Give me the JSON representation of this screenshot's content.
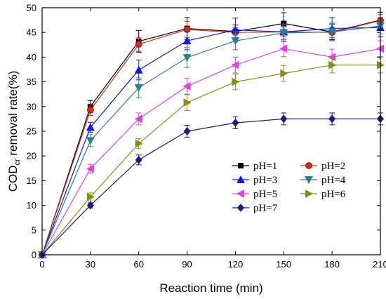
{
  "chart_data": {
    "type": "line",
    "title": "",
    "xlabel": "Reaction time (min)",
    "ylabel_main": "COD",
    "ylabel_sub": "cr",
    "ylabel_rest": " removal rate(%)",
    "xlim": [
      0,
      210
    ],
    "ylim": [
      0,
      50
    ],
    "xticks": [
      0,
      30,
      60,
      90,
      120,
      150,
      180,
      210
    ],
    "yticks": [
      0,
      5,
      10,
      15,
      20,
      25,
      30,
      35,
      40,
      45,
      50
    ],
    "grid": false,
    "legend_position": "bottom-right",
    "x": [
      0,
      30,
      60,
      90,
      120,
      150,
      180,
      210
    ],
    "series": [
      {
        "name": "pH=1",
        "color": "#000000",
        "marker": "square",
        "values": [
          0,
          30.0,
          43.2,
          45.8,
          45.2,
          46.8,
          45.1,
          47.5
        ],
        "errors": [
          0,
          1.2,
          2.2,
          2.2,
          1.3,
          2.2,
          1.6,
          1.6
        ]
      },
      {
        "name": "pH=2",
        "color": "#d42a1c",
        "marker": "circle",
        "values": [
          0,
          29.3,
          42.6,
          45.6,
          45.0,
          45.1,
          45.0,
          47.4
        ],
        "errors": [
          0,
          1.1,
          1.4,
          1.6,
          1.0,
          1.0,
          1.0,
          1.2
        ]
      },
      {
        "name": "pH=3",
        "color": "#1515e0",
        "marker": "triangle-up",
        "values": [
          0,
          25.8,
          37.4,
          43.3,
          45.5,
          45.1,
          45.8,
          46.0
        ],
        "errors": [
          0,
          1.0,
          2.0,
          1.8,
          2.4,
          1.5,
          2.2,
          1.9
        ]
      },
      {
        "name": "pH=4",
        "color": "#2a7f96",
        "marker": "triangle-down",
        "values": [
          0,
          23.1,
          33.8,
          39.9,
          43.3,
          44.9,
          45.1,
          46.3
        ],
        "errors": [
          0,
          1.2,
          2.0,
          2.0,
          1.8,
          1.8,
          1.8,
          1.6
        ]
      },
      {
        "name": "pH=5",
        "color": "#e040e8",
        "marker": "triangle-left",
        "values": [
          0,
          17.4,
          27.5,
          34.1,
          38.4,
          41.7,
          40.0,
          41.7
        ],
        "errors": [
          0,
          0.9,
          1.2,
          1.6,
          1.6,
          1.6,
          1.6,
          1.6
        ]
      },
      {
        "name": "pH=6",
        "color": "#8c8c14",
        "marker": "triangle-right",
        "values": [
          0,
          11.7,
          22.5,
          30.8,
          35.0,
          36.7,
          38.4,
          38.4
        ],
        "errors": [
          0,
          0.8,
          1.0,
          1.6,
          1.6,
          1.6,
          1.6,
          1.6
        ]
      },
      {
        "name": "pH=7",
        "color": "#1c1c7a",
        "marker": "diamond",
        "values": [
          0,
          10.0,
          19.2,
          25.0,
          26.7,
          27.5,
          27.5,
          27.5
        ],
        "errors": [
          0,
          0.5,
          1.0,
          1.2,
          1.2,
          1.2,
          1.2,
          1.2
        ]
      }
    ]
  }
}
